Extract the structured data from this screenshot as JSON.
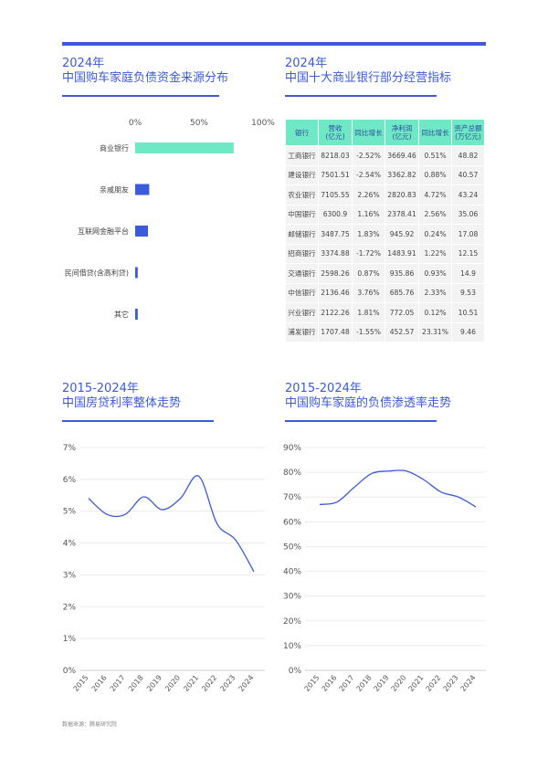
{
  "panels": {
    "funding": {
      "title_line1": "2024年",
      "title_line2": "中国购车家庭负债资金来源分布"
    },
    "banks": {
      "title_line1": "2024年",
      "title_line2": "中国十大商业银行部分经营指标"
    },
    "mortgage": {
      "title_line1": "2015-2024年",
      "title_line2": "中国房贷利率整体走势"
    },
    "penetration": {
      "title_line1": "2015-2024年",
      "title_line2": "中国购车家庭的负债渗透率走势"
    }
  },
  "colors": {
    "accent": "#3b5bdb",
    "mint": "#6fe8c6",
    "bar_blue": "#3b5bdb",
    "line": "#3b5bdb"
  },
  "chart_data": [
    {
      "type": "bar",
      "orientation": "horizontal",
      "categories": [
        "商业银行",
        "亲戚朋友",
        "互联网金融平台",
        "民间借贷(含高利贷)",
        "其它"
      ],
      "values": [
        77,
        11,
        10,
        2,
        2
      ],
      "xlim": [
        0,
        100
      ],
      "xticks": [
        "0%",
        "50%",
        "100%"
      ],
      "highlight_colors": [
        "#6fe8c6",
        "#3b5bdb",
        "#3b5bdb",
        "#3b5bdb",
        "#3b5bdb"
      ]
    },
    {
      "type": "table",
      "columns": [
        "银行",
        "营收\n(亿元)",
        "同比增长",
        "净利润\n(亿元)",
        "同比增长",
        "资产总额\n(万亿元)"
      ],
      "rows": [
        [
          "工商银行",
          "8218.03",
          "-2.52%",
          "3669.46",
          "0.51%",
          "48.82"
        ],
        [
          "建设银行",
          "7501.51",
          "-2.54%",
          "3362.82",
          "0.88%",
          "40.57"
        ],
        [
          "农业银行",
          "7105.55",
          "2.26%",
          "2820.83",
          "4.72%",
          "43.24"
        ],
        [
          "中国银行",
          "6300.9",
          "1.16%",
          "2378.41",
          "2.56%",
          "35.06"
        ],
        [
          "邮储银行",
          "3487.75",
          "1.83%",
          "945.92",
          "0.24%",
          "17.08"
        ],
        [
          "招商银行",
          "3374.88",
          "-1.72%",
          "1483.91",
          "1.22%",
          "12.15"
        ],
        [
          "交通银行",
          "2598.26",
          "0.87%",
          "935.86",
          "0.93%",
          "14.9"
        ],
        [
          "中信银行",
          "2136.46",
          "3.76%",
          "685.76",
          "2.33%",
          "9.53"
        ],
        [
          "兴业银行",
          "2122.26",
          "1.81%",
          "772.05",
          "0.12%",
          "10.51"
        ],
        [
          "浦发银行",
          "1707.48",
          "-1.55%",
          "452.57",
          "23.31%",
          "9.46"
        ]
      ]
    },
    {
      "type": "line",
      "x": [
        "2015",
        "2016",
        "2017",
        "2018",
        "2019",
        "2020",
        "2021",
        "2022",
        "2023",
        "2024"
      ],
      "y": [
        5.4,
        4.9,
        4.9,
        5.45,
        5.05,
        5.4,
        6.1,
        4.6,
        4.1,
        3.1
      ],
      "ylim": [
        0,
        7
      ],
      "yticks": [
        "0%",
        "1%",
        "2%",
        "3%",
        "4%",
        "5%",
        "6%",
        "7%"
      ],
      "grid": true
    },
    {
      "type": "line",
      "x": [
        "2015",
        "2016",
        "2017",
        "2018",
        "2019",
        "2020",
        "2021",
        "2022",
        "2023",
        "2024"
      ],
      "y": [
        67,
        68,
        74,
        79.5,
        80.5,
        80.5,
        77,
        72,
        70,
        66
      ],
      "ylim": [
        0,
        90
      ],
      "yticks": [
        "0%",
        "10%",
        "20%",
        "30%",
        "40%",
        "50%",
        "60%",
        "70%",
        "80%",
        "90%"
      ],
      "grid": true
    }
  ],
  "footnote": "数据来源：腾易研究院"
}
